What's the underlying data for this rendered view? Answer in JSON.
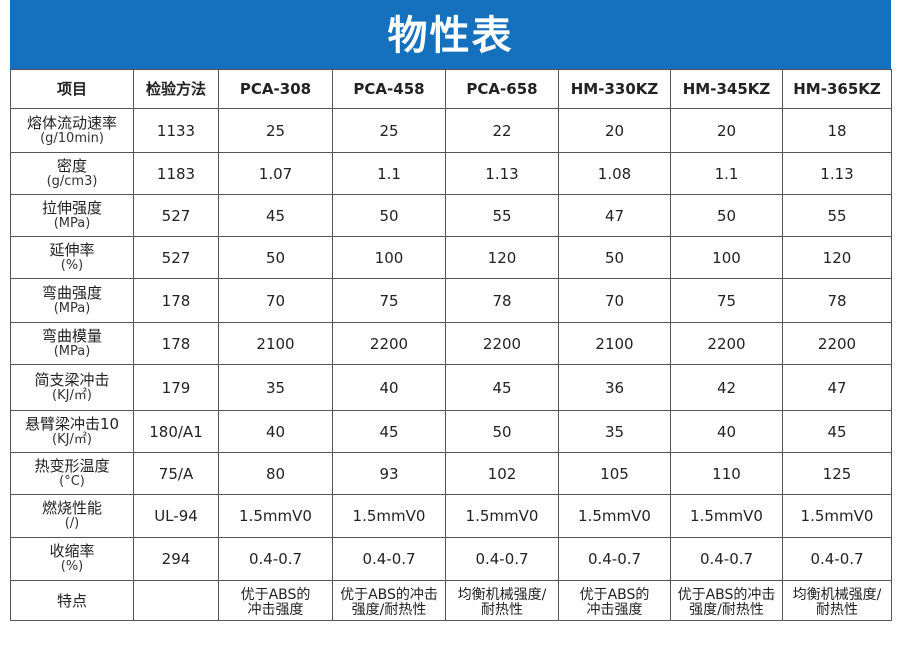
{
  "title": "物性表",
  "headers": [
    "项目",
    "检验方法",
    "PCA-308",
    "PCA-458",
    "PCA-658",
    "HM-330KZ",
    "HM-345KZ",
    "HM-365KZ"
  ],
  "rows": [
    {
      "name": "熔体流动速率",
      "unit": "(g/10min)",
      "method": "1133",
      "values": [
        "25",
        "25",
        "22",
        "20",
        "20",
        "18"
      ]
    },
    {
      "name": "密度",
      "unit": "(g/cm3)",
      "method": "1183",
      "values": [
        "1.07",
        "1.1",
        "1.13",
        "1.08",
        "1.1",
        "1.13"
      ]
    },
    {
      "name": "拉伸强度",
      "unit": "(MPa)",
      "method": "527",
      "values": [
        "45",
        "50",
        "55",
        "47",
        "50",
        "55"
      ]
    },
    {
      "name": "延伸率",
      "unit": "(%)",
      "method": "527",
      "values": [
        "50",
        "100",
        "120",
        "50",
        "100",
        "120"
      ]
    },
    {
      "name": "弯曲强度",
      "unit": "(MPa)",
      "method": "178",
      "values": [
        "70",
        "75",
        "78",
        "70",
        "75",
        "78"
      ]
    },
    {
      "name": "弯曲模量",
      "unit": "(MPa)",
      "method": "178",
      "values": [
        "2100",
        "2200",
        "2200",
        "2100",
        "2200",
        "2200"
      ]
    },
    {
      "name": "简支梁冲击",
      "unit": "(KJ/㎡)",
      "method": "179",
      "values": [
        "35",
        "40",
        "45",
        "36",
        "42",
        "47"
      ]
    },
    {
      "name": "悬臂梁冲击10",
      "unit": "(KJ/㎡)",
      "method": "180/A1",
      "values": [
        "40",
        "45",
        "50",
        "35",
        "40",
        "45"
      ]
    },
    {
      "name": "热变形温度",
      "unit": "(°C)",
      "method": "75/A",
      "values": [
        "80",
        "93",
        "102",
        "105",
        "110",
        "125"
      ]
    },
    {
      "name": "燃烧性能",
      "unit": "(/)",
      "method": "UL-94",
      "values": [
        "1.5mmV0",
        "1.5mmV0",
        "1.5mmV0",
        "1.5mmV0",
        "1.5mmV0",
        "1.5mmV0"
      ]
    },
    {
      "name": "收缩率",
      "unit": "(%)",
      "method": "294",
      "values": [
        "0.4-0.7",
        "0.4-0.7",
        "0.4-0.7",
        "0.4-0.7",
        "0.4-0.7",
        "0.4-0.7"
      ]
    }
  ],
  "features": {
    "name": "特点",
    "values": [
      [
        "优于ABS的",
        "冲击强度"
      ],
      [
        "优于ABS的冲击",
        "强度/耐热性"
      ],
      [
        "均衡机械强度/",
        "耐热性"
      ],
      [
        "优于ABS的",
        "冲击强度"
      ],
      [
        "优于ABS的冲击",
        "强度/耐热性"
      ],
      [
        "均衡机械强度/",
        "耐热性"
      ]
    ]
  }
}
